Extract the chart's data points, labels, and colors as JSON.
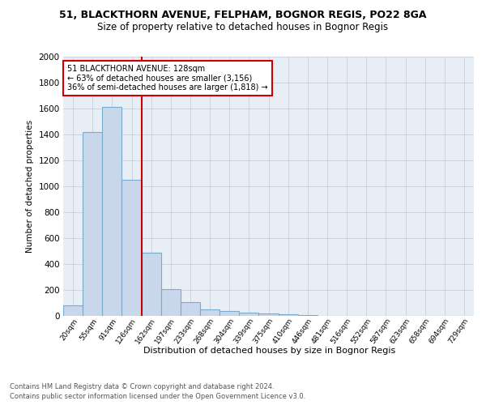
{
  "title1": "51, BLACKTHORN AVENUE, FELPHAM, BOGNOR REGIS, PO22 8GA",
  "title2": "Size of property relative to detached houses in Bognor Regis",
  "xlabel": "Distribution of detached houses by size in Bognor Regis",
  "ylabel": "Number of detached properties",
  "footnote1": "Contains HM Land Registry data © Crown copyright and database right 2024.",
  "footnote2": "Contains public sector information licensed under the Open Government Licence v3.0.",
  "bin_labels": [
    "20sqm",
    "55sqm",
    "91sqm",
    "126sqm",
    "162sqm",
    "197sqm",
    "233sqm",
    "268sqm",
    "304sqm",
    "339sqm",
    "375sqm",
    "410sqm",
    "446sqm",
    "481sqm",
    "516sqm",
    "552sqm",
    "587sqm",
    "623sqm",
    "658sqm",
    "694sqm",
    "729sqm"
  ],
  "bar_values": [
    80,
    1420,
    1610,
    1050,
    490,
    205,
    105,
    48,
    35,
    25,
    18,
    10,
    5,
    3,
    2,
    1,
    1,
    0,
    0,
    0,
    0
  ],
  "bar_color": "#c8d8ea",
  "bar_edge_color": "#7aabcc",
  "property_bin_index": 3,
  "property_line_color": "#cc0000",
  "annotation_line1": "51 BLACKTHORN AVENUE: 128sqm",
  "annotation_line2": "← 63% of detached houses are smaller (3,156)",
  "annotation_line3": "36% of semi-detached houses are larger (1,818) →",
  "annotation_box_color": "#cc0000",
  "ylim": [
    0,
    2000
  ],
  "yticks": [
    0,
    200,
    400,
    600,
    800,
    1000,
    1200,
    1400,
    1600,
    1800,
    2000
  ],
  "grid_color": "#c8d0dc",
  "background_color": "#e8eef5",
  "fig_background": "#ffffff"
}
